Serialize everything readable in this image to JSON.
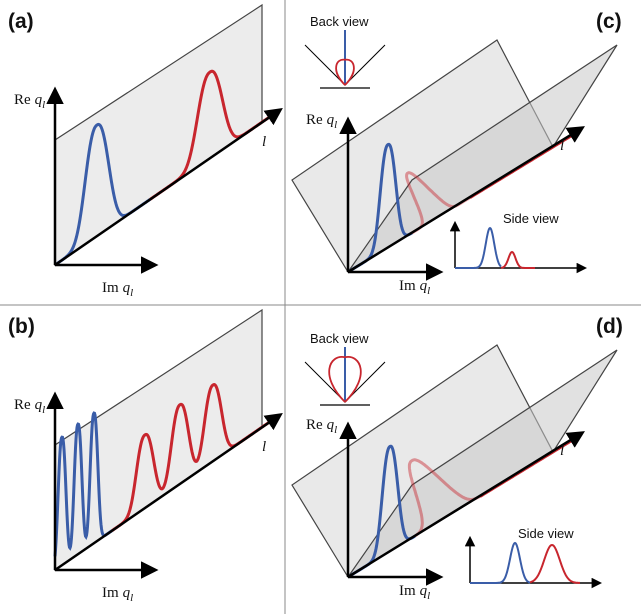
{
  "panels": [
    {
      "label": "(a)",
      "re_axis": {
        "prefix": "Re",
        "var": "q",
        "sub": "l"
      },
      "im_axis": {
        "prefix": "Im",
        "var": "q",
        "sub": "l"
      },
      "l_axis": "l"
    },
    {
      "label": "(b)",
      "re_axis": {
        "prefix": "Re",
        "var": "q",
        "sub": "l"
      },
      "im_axis": {
        "prefix": "Im",
        "var": "q",
        "sub": "l"
      },
      "l_axis": "l"
    },
    {
      "label": "(c)",
      "re_axis": {
        "prefix": "Re",
        "var": "q",
        "sub": "l"
      },
      "im_axis": {
        "prefix": "Im",
        "var": "q",
        "sub": "l"
      },
      "l_axis": "l",
      "back_view": "Back view",
      "side_view": "Side view"
    },
    {
      "label": "(d)",
      "re_axis": {
        "prefix": "Re",
        "var": "q",
        "sub": "l"
      },
      "im_axis": {
        "prefix": "Im",
        "var": "q",
        "sub": "l"
      },
      "l_axis": "l",
      "back_view": "Back view",
      "side_view": "Side view"
    }
  ]
}
